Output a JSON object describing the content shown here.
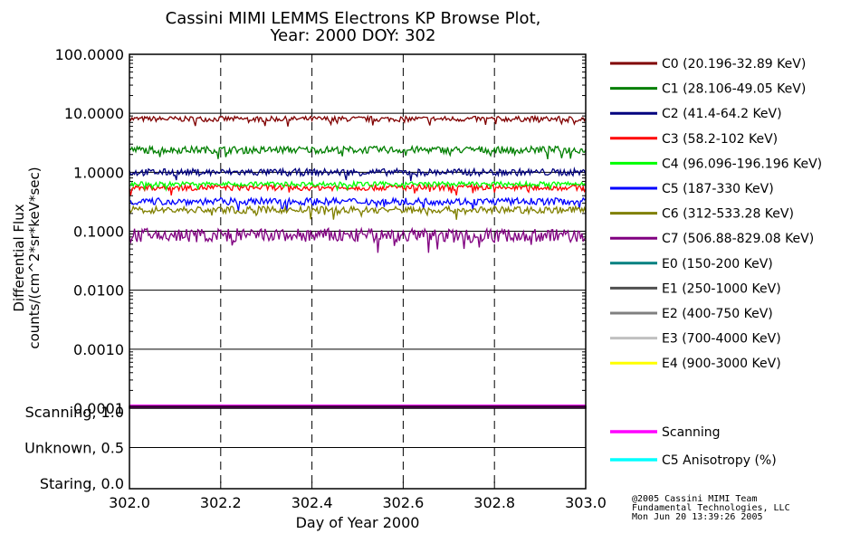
{
  "title": {
    "line1": "Cassini MIMI LEMMS Electrons KP Browse Plot,",
    "line2": "Year: 2000 DOY: 302"
  },
  "credits": {
    "line1": "@2005 Cassini MIMI Team",
    "line2": "Fundamental Technologies, LLC",
    "line3": "Mon Jun 20 13:39:26 2005"
  },
  "chart_data": [
    {
      "type": "line",
      "ylabel_line1": "Differential Flux",
      "ylabel_line2": "counts/(cm^2*sr*keV*sec)",
      "xlabel": "Day of Year 2000",
      "yscale": "log",
      "xlim": [
        302.0,
        303.0
      ],
      "ylim": [
        0.0001,
        100
      ],
      "x_ticks": [
        "302.0",
        "302.2",
        "302.4",
        "302.6",
        "302.8",
        "303.0"
      ],
      "x_tick_values": [
        302.0,
        302.2,
        302.4,
        302.6,
        302.8,
        303.0
      ],
      "y_ticks": [
        "100.0000",
        "10.0000",
        "1.0000",
        "0.1000",
        "0.0100",
        "0.0010",
        "0.0001"
      ],
      "y_tick_values": [
        100,
        10,
        1,
        0.1,
        0.01,
        0.001,
        0.0001
      ],
      "grid": "vertical dashed at x ticks, horizontal solid at decades",
      "legend_position": "right",
      "series": [
        {
          "name": "C0 (20.196-32.89 KeV)",
          "color": "#800000",
          "level": 8.0,
          "noise": 0.045
        },
        {
          "name": "C1 (28.106-49.05 KeV)",
          "color": "#007f00",
          "level": 2.4,
          "noise": 0.06
        },
        {
          "name": "C2 (41.4-64.2 KeV)",
          "color": "#00007f",
          "level": 1.0,
          "noise": 0.06
        },
        {
          "name": "C3 (58.2-102 KeV)",
          "color": "#ff0000",
          "level": 0.55,
          "noise": 0.05
        },
        {
          "name": "C4 (96.096-196.196 KeV)",
          "color": "#00ff00",
          "level": 0.63,
          "noise": 0.04
        },
        {
          "name": "C5 (187-330 KeV)",
          "color": "#0000ff",
          "level": 0.32,
          "noise": 0.06
        },
        {
          "name": "C6 (312-533.28 KeV)",
          "color": "#808000",
          "level": 0.23,
          "noise": 0.06
        },
        {
          "name": "C7 (506.88-829.08 KeV)",
          "color": "#800080",
          "level": 0.085,
          "noise": 0.12
        },
        {
          "name": "E0 (150-200 KeV)",
          "color": "#008080"
        },
        {
          "name": "E1 (250-1000 KeV)",
          "color": "#505050"
        },
        {
          "name": "E2 (400-750 KeV)",
          "color": "#808080"
        },
        {
          "name": "E3 (700-4000 KeV)",
          "color": "#c0c0c0"
        },
        {
          "name": "E4 (900-3000 KeV)",
          "color": "#ffff00"
        }
      ]
    },
    {
      "type": "line",
      "xlabel": "Day of Year 2000",
      "xlim": [
        302.0,
        303.0
      ],
      "ylim": [
        0.0,
        1.0
      ],
      "y_ticks": [
        "Scanning, 1.0",
        "Unknown, 0.5",
        "Staring, 0.0"
      ],
      "y_tick_values": [
        1.0,
        0.5,
        0.0
      ],
      "series": [
        {
          "name": "Scanning",
          "color": "#ff00ff",
          "x": [
            302.0,
            303.0
          ],
          "values": [
            1.0,
            1.0
          ]
        },
        {
          "name": "C5 Anisotropy (%)",
          "color": "#00ffff",
          "x": [],
          "values": []
        }
      ]
    }
  ]
}
